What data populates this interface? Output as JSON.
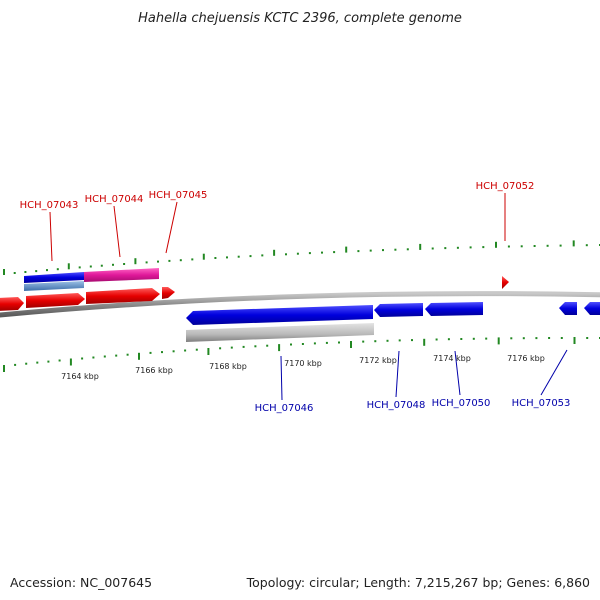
{
  "title": "Hahella chejuensis KCTC 2396, complete genome",
  "footer": {
    "accession": "Accession: NC_007645",
    "summary": "Topology: circular; Length: 7,215,267 bp; Genes: 6,860"
  },
  "ruler": {
    "labels": [
      "7164 kbp",
      "7166 kbp",
      "7168 kbp",
      "7170 kbp",
      "7172 kbp",
      "7174 kbp",
      "7176 kbp"
    ]
  },
  "gene_labels": {
    "top": [
      "HCH_07043",
      "HCH_07044",
      "HCH_07045",
      "HCH_07052"
    ],
    "bottom": [
      "HCH_07046",
      "HCH_07048",
      "HCH_07050",
      "HCH_07053"
    ]
  },
  "colors": {
    "forward_gene": "#e60000",
    "reverse_gene": "#0000dd",
    "pink_feature": "#e0189a",
    "light_blue_feature": "#5b8fc8",
    "gray_feature": "#b8b8b8",
    "backbone": "#8a8a8a",
    "tick": "#228822"
  }
}
